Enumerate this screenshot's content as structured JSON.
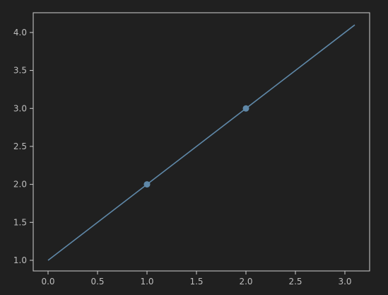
{
  "chart_data": {
    "type": "line",
    "title": "",
    "xlabel": "",
    "ylabel": "",
    "xlim": [
      -0.15,
      3.25
    ],
    "ylim": [
      0.86,
      4.26
    ],
    "x_ticks": [
      "0.0",
      "0.5",
      "1.0",
      "1.5",
      "2.0",
      "2.5",
      "3.0"
    ],
    "y_ticks": [
      "1.0",
      "1.5",
      "2.0",
      "2.5",
      "3.0",
      "3.5",
      "4.0"
    ],
    "grid": false,
    "series": [
      {
        "x": [
          0.0,
          3.1
        ],
        "y": [
          1.0,
          4.1
        ],
        "markers": [
          {
            "x": 1.0,
            "y": 2.0
          },
          {
            "x": 2.0,
            "y": 3.0
          }
        ]
      }
    ],
    "colors": {
      "background": "#202020",
      "axes_background": "#202020",
      "axes_edge": "#cfcfcf",
      "line": "#5f88a8",
      "marker": "#5f88a8",
      "tick_text": "#bdbdbd"
    }
  }
}
